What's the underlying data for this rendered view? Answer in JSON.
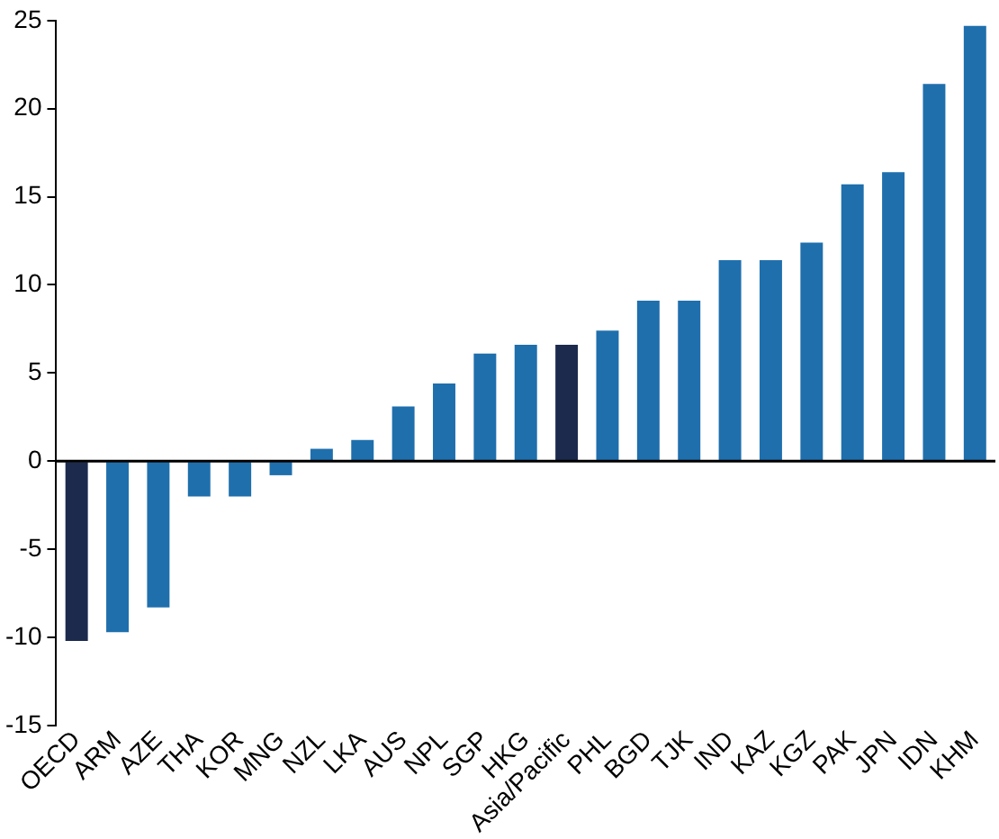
{
  "chart_data": {
    "type": "bar",
    "categories": [
      "OECD",
      "ARM",
      "AZE",
      "THA",
      "KOR",
      "MNG",
      "NZL",
      "LKA",
      "AUS",
      "NPL",
      "SGP",
      "HKG",
      "Asia/Pacific",
      "PHL",
      "BGD",
      "TJK",
      "IND",
      "KAZ",
      "KGZ",
      "PAK",
      "JPN",
      "IDN",
      "KHM"
    ],
    "values": [
      -10.2,
      -9.7,
      -8.3,
      -2.0,
      -2.0,
      -0.8,
      0.7,
      1.2,
      3.1,
      4.4,
      6.1,
      6.6,
      6.6,
      7.4,
      9.1,
      9.1,
      11.4,
      11.4,
      12.4,
      15.7,
      16.4,
      21.4,
      24.7
    ],
    "colors": [
      "#1c2a4d",
      "#1f6fad",
      "#1f6fad",
      "#1f6fad",
      "#1f6fad",
      "#1f6fad",
      "#1f6fad",
      "#1f6fad",
      "#1f6fad",
      "#1f6fad",
      "#1f6fad",
      "#1f6fad",
      "#1c2a4d",
      "#1f6fad",
      "#1f6fad",
      "#1f6fad",
      "#1f6fad",
      "#1f6fad",
      "#1f6fad",
      "#1f6fad",
      "#1f6fad",
      "#1f6fad",
      "#1f6fad"
    ],
    "ylim": [
      -15,
      25
    ],
    "yticks": [
      -15,
      -10,
      -5,
      0,
      5,
      10,
      15,
      20,
      25
    ],
    "grid": false,
    "legend": false,
    "ref_lines": [
      {
        "axis": "y",
        "value": 0,
        "color": "#000000"
      }
    ]
  }
}
